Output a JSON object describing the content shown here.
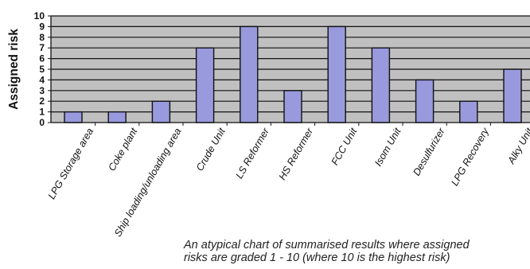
{
  "chart_data": {
    "type": "bar",
    "ylabel": "Assigned risk",
    "ylim": [
      0,
      10
    ],
    "yticks": [
      0,
      1,
      2,
      3,
      4,
      5,
      6,
      7,
      8,
      9,
      10
    ],
    "categories": [
      "LPG Storage area",
      "Coke plant",
      "Ship loading/unloading area",
      "Crude Unit",
      "LS Reformer",
      "HS Reformer",
      "FCC Unit",
      "Isom Unit",
      "Desulfurizer",
      "LPG Recovery",
      "Alky Unit"
    ],
    "values": [
      1,
      1,
      2,
      7,
      9,
      3,
      9,
      7,
      4,
      2,
      5
    ],
    "grid": true,
    "colors": {
      "bar": "#9999dd",
      "bar_edge": "#111111",
      "plot_bg": "#c0c0c0",
      "grid": "#111111"
    }
  },
  "caption": {
    "line1": "An atypical chart of summarised results where assigned",
    "line2": "risks are graded 1 - 10 (where 10 is the highest risk)"
  }
}
